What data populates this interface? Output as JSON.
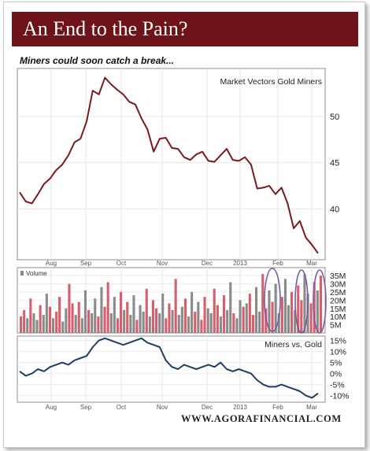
{
  "title": "An End to the Pain?",
  "subtitle": "Miners could soon catch a break...",
  "footer": "WWW.AGORAFINANCIAL.COM",
  "colors": {
    "banner": "#6e1418",
    "price_line": "#7a1a1f",
    "ratio_line": "#1d3f63",
    "volume_up": "#d5606c",
    "volume_down": "#8a8a8a",
    "highlight": "#7a5aa6"
  },
  "chart_data": [
    {
      "type": "line",
      "title": "Market Vectors Gold Miners",
      "series": [
        {
          "name": "Market Vectors Gold Miners",
          "x": [
            0,
            3,
            6,
            9,
            12,
            15,
            18,
            21,
            24,
            27,
            30,
            33,
            36,
            39,
            42,
            45,
            48,
            51,
            54,
            57,
            60,
            63,
            66,
            69,
            72,
            75,
            78,
            81,
            84,
            87,
            90,
            93,
            96,
            99,
            102,
            105,
            108,
            111,
            114,
            117,
            120,
            123,
            126,
            129,
            132,
            135,
            138,
            141,
            144,
            147,
            150,
            153,
            156,
            159,
            162,
            165,
            168,
            171,
            174,
            177,
            180,
            183,
            186,
            189,
            192,
            195,
            198,
            201,
            204,
            207,
            210,
            213,
            216,
            219,
            222,
            225,
            228,
            231,
            234
          ],
          "values": [
            41.8,
            40.8,
            40.6,
            41.6,
            42.7,
            43.3,
            44.2,
            44.8,
            45.8,
            47.2,
            47.6,
            49.5,
            52.8,
            52.4,
            54.2,
            53.5,
            52.9,
            52.4,
            51.6,
            51.3,
            49.8,
            48.6,
            46.2,
            47.6,
            47.7,
            46.6,
            46.5,
            45.6,
            45.3,
            45.9,
            46.2,
            45.2,
            45.1,
            45.8,
            46.5,
            45.3,
            45.2,
            45.6,
            44.8,
            42.2,
            42.3,
            42.5,
            41.6,
            42.3,
            40.6,
            37.9,
            38.7,
            36.9,
            36.1,
            35.2,
            36.8,
            36.6,
            36.4,
            36.3,
            36.2,
            36.1,
            36.0,
            35.9,
            35.8,
            35.7,
            35.6,
            35.5,
            35.4,
            35.3,
            35.2,
            35.1,
            35.0,
            34.9,
            34.8,
            34.7,
            34.6,
            34.5,
            34.4,
            34.3,
            34.2,
            34.1,
            34.0,
            33.9,
            33.8
          ]
        }
      ],
      "ylim": [
        34.5,
        55.2
      ],
      "yticks": [
        "50",
        "45",
        "40"
      ],
      "ytick_values": [
        50,
        45,
        40
      ]
    },
    {
      "type": "bar",
      "title": "Volume",
      "legend": "Volume",
      "values_millions": [
        10,
        14,
        9,
        21,
        12,
        8,
        17,
        11,
        24,
        16,
        9,
        13,
        22,
        7,
        15,
        30,
        18,
        11,
        19,
        9,
        26,
        14,
        12,
        21,
        10,
        28,
        16,
        31,
        12,
        22,
        9,
        25,
        14,
        19,
        11,
        23,
        8,
        17,
        13,
        27,
        10,
        20,
        15,
        12,
        24,
        9,
        18,
        14,
        33,
        11,
        16,
        21,
        10,
        25,
        13,
        19,
        8,
        22,
        15,
        12,
        27,
        17,
        10,
        23,
        14,
        31,
        12,
        9,
        20,
        16,
        18,
        24,
        11,
        28,
        13,
        36,
        15,
        26,
        19,
        30,
        12,
        22,
        33,
        17,
        25,
        14,
        29,
        20,
        36,
        24,
        18,
        31,
        26,
        35
      ],
      "yticks": [
        "35M",
        "30M",
        "25M",
        "20M",
        "15M",
        "10M",
        "5M"
      ],
      "ytick_values": [
        35,
        30,
        25,
        20,
        15,
        10,
        5
      ]
    },
    {
      "type": "line",
      "title": "Miners vs. Gold",
      "series": [
        {
          "name": "Miners vs. Gold",
          "values": [
            1,
            -1,
            0,
            2,
            1,
            3,
            4,
            5,
            4,
            6,
            7,
            8,
            12,
            15,
            16,
            15,
            14,
            13,
            14,
            15,
            16,
            14,
            13,
            12,
            6,
            3,
            2,
            4,
            3,
            2,
            3,
            4,
            3,
            5,
            2,
            1,
            2,
            1,
            0,
            -3,
            -5,
            -6,
            -6,
            -5,
            -6,
            -7,
            -8,
            -10,
            -11,
            -9
          ]
        }
      ],
      "ylim": [
        -13,
        17
      ],
      "yticks": [
        "15%",
        "10%",
        "5%",
        "0%",
        "-5%",
        "-10%"
      ],
      "ytick_values": [
        15,
        10,
        5,
        0,
        -5,
        -10
      ]
    }
  ],
  "x_axis_labels": [
    "Aug",
    "Sep",
    "Oct",
    "Nov",
    "Dec",
    "2013",
    "Feb",
    "Mar"
  ]
}
